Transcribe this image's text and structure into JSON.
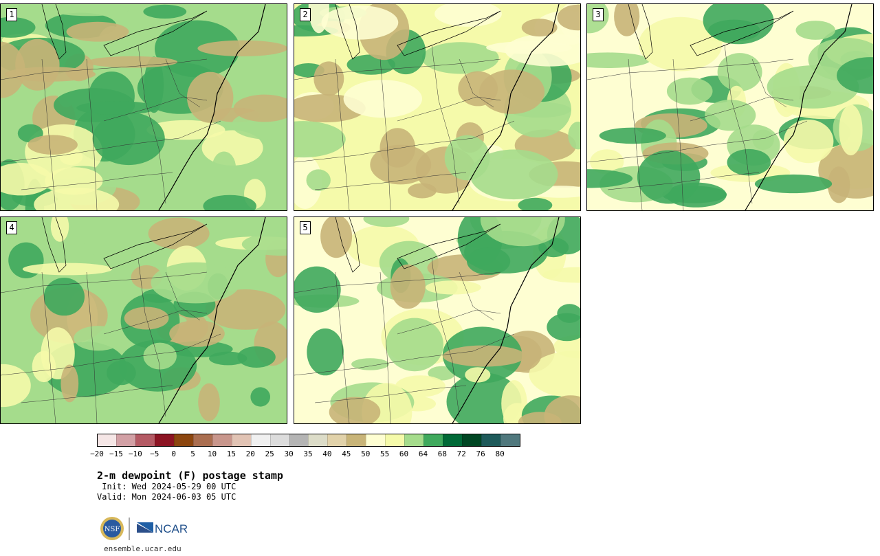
{
  "panels": [
    {
      "label": "1",
      "palette": [
        "#a5dc8c",
        "#a5dc8c",
        "#3fa95d",
        "#c8b478",
        "#f5faaa"
      ]
    },
    {
      "label": "2",
      "palette": [
        "#f5faaa",
        "#fefed2",
        "#c8b478",
        "#a5dc8c",
        "#3fa95d"
      ]
    },
    {
      "label": "3",
      "palette": [
        "#fefed2",
        "#f5faaa",
        "#c8b478",
        "#3fa95d",
        "#a5dc8c"
      ]
    },
    {
      "label": "4",
      "palette": [
        "#a5dc8c",
        "#f5faaa",
        "#3fa95d",
        "#c8b478",
        "#a5dc8c"
      ]
    },
    {
      "label": "5",
      "palette": [
        "#fefed2",
        "#f5faaa",
        "#c8b478",
        "#3fa95d",
        "#a5dc8c"
      ]
    }
  ],
  "colorbar": {
    "colors": [
      "#f5e6e6",
      "#d2a0a5",
      "#b45a64",
      "#8c1423",
      "#8c460f",
      "#aa6e50",
      "#c8968c",
      "#e1c3b4",
      "#f0f0f0",
      "#dcdcdc",
      "#b4b4b4",
      "#dcdcc8",
      "#e1d2aa",
      "#c8b478",
      "#fefed2",
      "#f5faaa",
      "#a5dc8c",
      "#3fa95d",
      "#006937",
      "#004623",
      "#1e5a5a",
      "#50787d"
    ],
    "tick_labels": [
      "−20",
      "−15",
      "−10",
      "−5",
      "0",
      "5",
      "10",
      "15",
      "20",
      "25",
      "30",
      "35",
      "40",
      "45",
      "50",
      "55",
      "60",
      "64",
      "68",
      "72",
      "76",
      "80"
    ]
  },
  "title": "2-m dewpoint (F) postage stamp",
  "init": " Init: Wed 2024-05-29 00 UTC",
  "valid": "Valid: Mon 2024-06-03 05 UTC",
  "url": "ensemble.ucar.edu",
  "logo": {
    "nsf": "NSF",
    "ncar": "NCAR"
  }
}
